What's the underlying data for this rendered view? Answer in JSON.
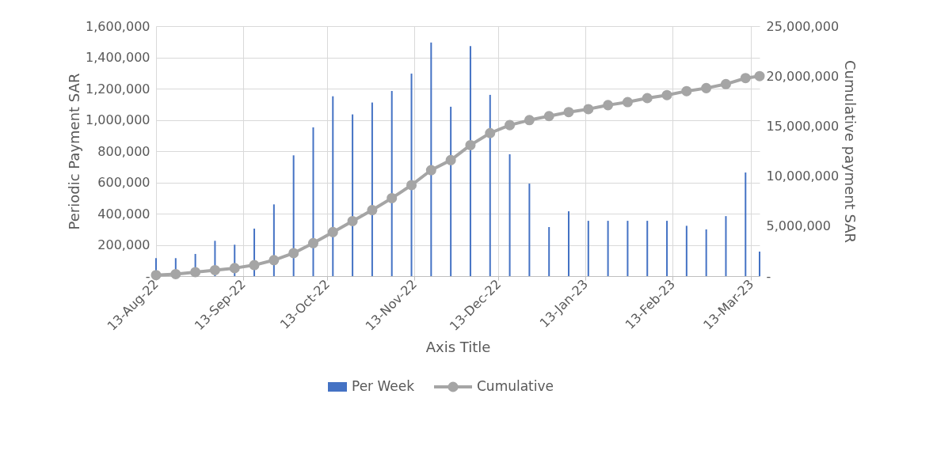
{
  "chart_data": {
    "type": "bar",
    "xlabel": "Axis Title",
    "ylabel": "Periodic Payment SAR",
    "y2label": "Cumulative payment SAR",
    "x": [
      "2022-08-13",
      "2022-08-20",
      "2022-08-27",
      "2022-09-03",
      "2022-09-10",
      "2022-09-17",
      "2022-09-24",
      "2022-10-01",
      "2022-10-08",
      "2022-10-15",
      "2022-10-22",
      "2022-10-29",
      "2022-11-05",
      "2022-11-12",
      "2022-11-19",
      "2022-11-26",
      "2022-12-03",
      "2022-12-10",
      "2022-12-17",
      "2022-12-24",
      "2022-12-31",
      "2023-01-07",
      "2023-01-14",
      "2023-01-21",
      "2023-01-28",
      "2023-02-04",
      "2023-02-11",
      "2023-02-18",
      "2023-02-25",
      "2023-03-04",
      "2023-03-11",
      "2023-03-16"
    ],
    "series": [
      {
        "name": "Per Week",
        "color": "#4472c4",
        "values": [
          115000,
          115000,
          142000,
          226000,
          201000,
          304000,
          459000,
          773000,
          952000,
          1151000,
          1035000,
          1111000,
          1185000,
          1296000,
          1495000,
          1084000,
          1472000,
          1160000,
          780000,
          592000,
          314000,
          415000,
          354000,
          354000,
          354000,
          354000,
          354000,
          322000,
          299000,
          384000,
          663000,
          157000
        ]
      },
      {
        "name": "Cumulative",
        "type": "line",
        "axis": "y2",
        "color": "#a5a5a5",
        "marker": "circle",
        "values": [
          100000,
          200000,
          400000,
          600000,
          800000,
          1100000,
          1600000,
          2300000,
          3300000,
          4400000,
          5500000,
          6600000,
          7800000,
          9100000,
          10600000,
          11600000,
          13100000,
          14300000,
          15100000,
          15600000,
          16000000,
          16400000,
          16700000,
          17100000,
          17400000,
          17800000,
          18100000,
          18500000,
          18800000,
          19200000,
          19800000,
          20000000
        ]
      }
    ],
    "xlim": [
      "2022-08-13",
      "2023-03-16"
    ],
    "xticks": [
      {
        "value": "2022-08-13",
        "label": "13-Aug-22"
      },
      {
        "value": "2022-09-13",
        "label": "13-Sep-22"
      },
      {
        "value": "2022-10-13",
        "label": "13-Oct-22"
      },
      {
        "value": "2022-11-13",
        "label": "13-Nov-22"
      },
      {
        "value": "2022-12-13",
        "label": "13-Dec-22"
      },
      {
        "value": "2023-01-13",
        "label": "13-Jan-23"
      },
      {
        "value": "2023-02-13",
        "label": "13-Feb-23"
      },
      {
        "value": "2023-03-13",
        "label": "13-Mar-23"
      }
    ],
    "ylim": [
      0,
      1600000
    ],
    "yticks": [
      {
        "value": 0,
        "label": "-"
      },
      {
        "value": 200000,
        "label": "200,000"
      },
      {
        "value": 400000,
        "label": "400,000"
      },
      {
        "value": 600000,
        "label": "600,000"
      },
      {
        "value": 800000,
        "label": "800,000"
      },
      {
        "value": 1000000,
        "label": "1,000,000"
      },
      {
        "value": 1200000,
        "label": "1,200,000"
      },
      {
        "value": 1400000,
        "label": "1,400,000"
      },
      {
        "value": 1600000,
        "label": "1,600,000"
      }
    ],
    "y2lim": [
      0,
      25000000
    ],
    "y2ticks": [
      {
        "value": 0,
        "label": "-"
      },
      {
        "value": 5000000,
        "label": "5,000,000"
      },
      {
        "value": 10000000,
        "label": "10,000,000"
      },
      {
        "value": 15000000,
        "label": "15,000,000"
      },
      {
        "value": 20000000,
        "label": "20,000,000"
      },
      {
        "value": 25000000,
        "label": "25,000,000"
      }
    ],
    "grid": true,
    "legend": "bottom"
  }
}
